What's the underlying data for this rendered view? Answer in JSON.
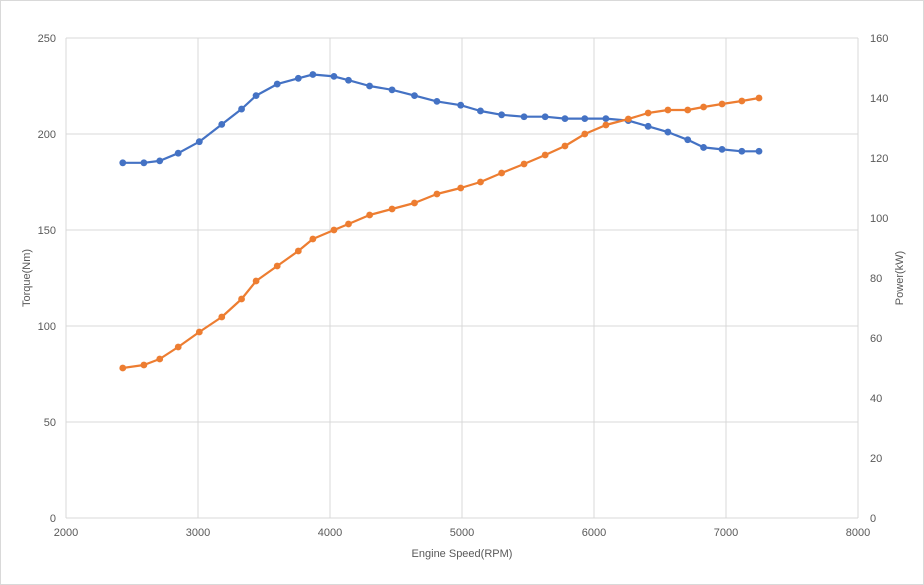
{
  "chart_data": {
    "type": "line",
    "title": "",
    "xlabel": "Engine Speed(RPM)",
    "ylabel": "Torque(Nm)",
    "y2label": "Power(kW)",
    "xlim": [
      2000,
      8000
    ],
    "ylim": [
      0,
      250
    ],
    "y2lim": [
      0,
      160
    ],
    "xticks": [
      2000,
      3000,
      4000,
      5000,
      6000,
      7000,
      8000
    ],
    "yticks": [
      0,
      50,
      100,
      150,
      200,
      250
    ],
    "y2ticks": [
      0,
      20,
      40,
      60,
      80,
      100,
      120,
      140,
      160
    ],
    "grid": true,
    "legend": "none",
    "series": [
      {
        "axis": "left",
        "color": "#4472c4",
        "x": [
          2430,
          2590,
          2710,
          2850,
          3010,
          3180,
          3330,
          3440,
          3600,
          3760,
          3870,
          4030,
          4140,
          4300,
          4470,
          4640,
          4810,
          4990,
          5140,
          5300,
          5470,
          5630,
          5780,
          5930,
          6090,
          6260,
          6410,
          6560,
          6710,
          6830,
          6970,
          7120,
          7250
        ],
        "values": [
          185,
          185,
          186,
          190,
          196,
          205,
          213,
          220,
          226,
          229,
          231,
          230,
          228,
          225,
          223,
          220,
          217,
          215,
          212,
          210,
          209,
          209,
          208,
          208,
          208,
          207,
          204,
          201,
          197,
          193,
          192,
          191,
          191
        ]
      },
      {
        "axis": "right",
        "color": "#ed7d31",
        "x": [
          2430,
          2590,
          2710,
          2850,
          3010,
          3180,
          3330,
          3440,
          3600,
          3760,
          3870,
          4030,
          4140,
          4300,
          4470,
          4640,
          4810,
          4990,
          5140,
          5300,
          5470,
          5630,
          5780,
          5930,
          6090,
          6260,
          6410,
          6560,
          6710,
          6830,
          6970,
          7120,
          7250
        ],
        "values": [
          50,
          51,
          53,
          57,
          62,
          67,
          73,
          79,
          84,
          89,
          93,
          96,
          98,
          101,
          103,
          105,
          108,
          110,
          112,
          115,
          118,
          121,
          124,
          128,
          131,
          133,
          135,
          136,
          136,
          137,
          138,
          139,
          140
        ]
      }
    ]
  }
}
